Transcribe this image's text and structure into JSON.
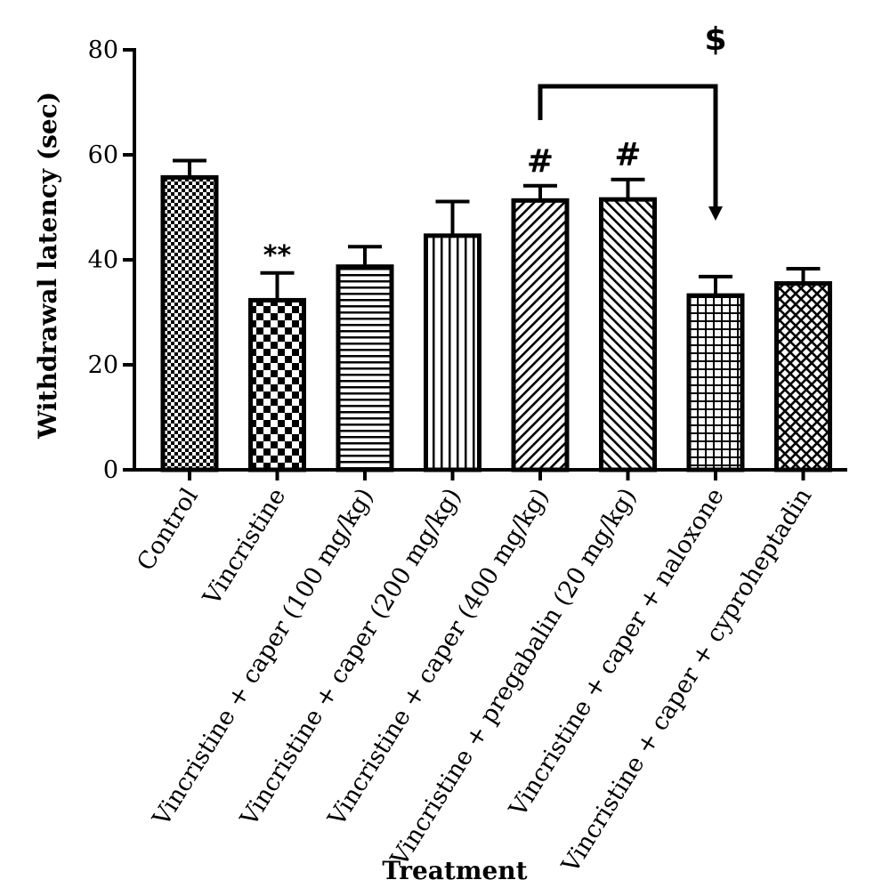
{
  "chart_data": {
    "type": "bar",
    "title": "",
    "xlabel": "Treatment",
    "ylabel": "Withdrawal latency (sec)",
    "ylim": [
      0,
      80
    ],
    "yticks": [
      0,
      20,
      40,
      60,
      80
    ],
    "grid": false,
    "categories": [
      "Control",
      "Vincristine",
      "Vincristine + caper (100 mg/kg)",
      "Vincristine + caper (200 mg/kg)",
      "Vincristine + caper (400 mg/kg)",
      "Vincristine + pregabalin (20 mg/kg)",
      "Vincristine + caper + naloxone",
      "Vincristine + caper + cyproheptadin"
    ],
    "series": [
      {
        "values": [
          55.7,
          32.3,
          38.7,
          44.6,
          51.3,
          51.5,
          33.2,
          35.5
        ],
        "errors": [
          3.2,
          5.2,
          3.8,
          6.5,
          2.8,
          3.8,
          3.6,
          2.8
        ],
        "annotations": [
          "",
          "**",
          "",
          "",
          "#",
          "#",
          "",
          ""
        ]
      }
    ],
    "patterns": [
      "fine-checker",
      "checker",
      "horizontal",
      "vertical",
      "diag-up",
      "diag-down",
      "grid",
      "crosshatch"
    ],
    "comparisons": [
      {
        "from": 4,
        "to": 6,
        "label": "$"
      }
    ]
  }
}
